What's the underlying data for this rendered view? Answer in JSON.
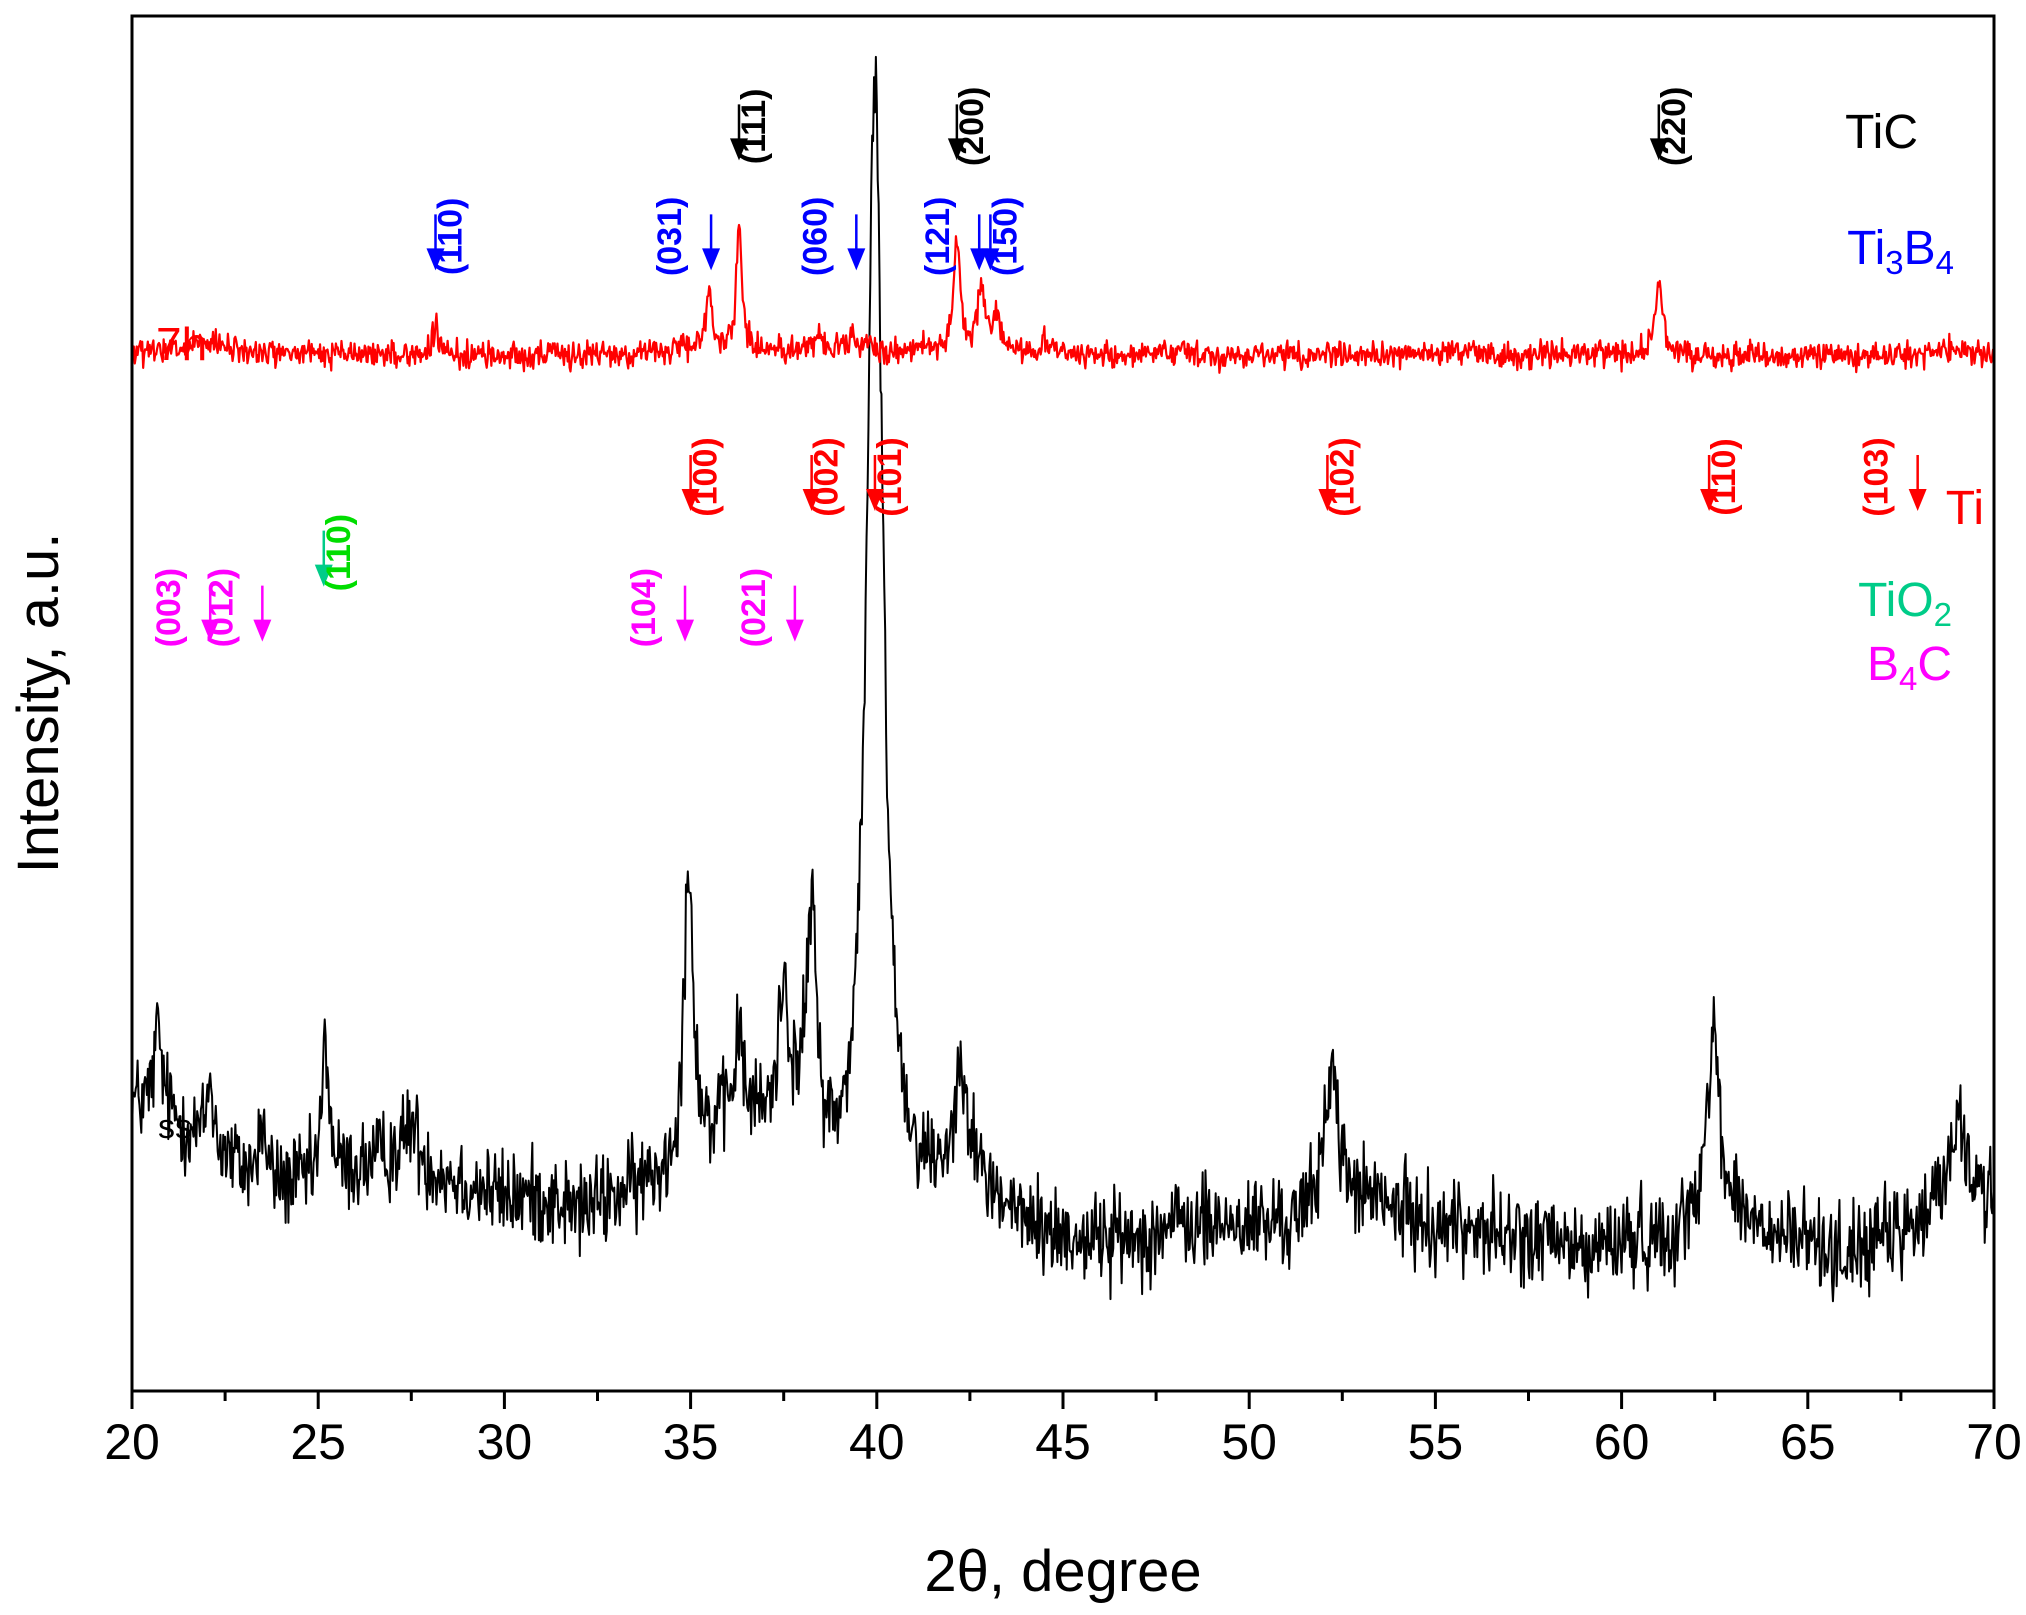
{
  "chart_data": {
    "type": "line",
    "xlabel": "2θ, degree",
    "ylabel": "Intensity, a.u.",
    "xlim": [
      20,
      70
    ],
    "x_ticks": [
      "20",
      "25",
      "30",
      "35",
      "40",
      "45",
      "50",
      "55",
      "60",
      "65",
      "70"
    ],
    "y_ticks_shown": false,
    "grid": false,
    "series": [
      {
        "name": "ss",
        "color": "#000000",
        "baseline": 0.15,
        "noise": 0.024,
        "points": [
          [
            20,
            0.21
          ],
          [
            21,
            0.2
          ],
          [
            22,
            0.18
          ],
          [
            23,
            0.16
          ],
          [
            24,
            0.15
          ],
          [
            25,
            0.15
          ],
          [
            26,
            0.16
          ],
          [
            27,
            0.17
          ],
          [
            28,
            0.16
          ],
          [
            29,
            0.15
          ],
          [
            30,
            0.14
          ],
          [
            31,
            0.14
          ],
          [
            32,
            0.13
          ],
          [
            33,
            0.14
          ],
          [
            34,
            0.15
          ],
          [
            35,
            0.16
          ],
          [
            36,
            0.19
          ],
          [
            37,
            0.19
          ],
          [
            38,
            0.19
          ],
          [
            39,
            0.14
          ],
          [
            40,
            0.15
          ],
          [
            41,
            0.14
          ],
          [
            42,
            0.15
          ],
          [
            43,
            0.14
          ],
          [
            44,
            0.12
          ],
          [
            45,
            0.11
          ],
          [
            46,
            0.11
          ],
          [
            47,
            0.11
          ],
          [
            48,
            0.12
          ],
          [
            49,
            0.12
          ],
          [
            50,
            0.12
          ],
          [
            51,
            0.12
          ],
          [
            52,
            0.13
          ],
          [
            53,
            0.14
          ],
          [
            54,
            0.13
          ],
          [
            55,
            0.12
          ],
          [
            56,
            0.12
          ],
          [
            57,
            0.11
          ],
          [
            58,
            0.11
          ],
          [
            59,
            0.1
          ],
          [
            60,
            0.11
          ],
          [
            61,
            0.11
          ],
          [
            62,
            0.12
          ],
          [
            63,
            0.13
          ],
          [
            64,
            0.11
          ],
          [
            65,
            0.11
          ],
          [
            66,
            0.1
          ],
          [
            67,
            0.11
          ],
          [
            68,
            0.12
          ],
          [
            69,
            0.16
          ],
          [
            70,
            0.14
          ]
        ],
        "peaks": [
          {
            "x": 20.7,
            "h": 0.06,
            "w": 0.12
          },
          {
            "x": 22.1,
            "h": 0.05,
            "w": 0.1
          },
          {
            "x": 23.5,
            "h": 0.04,
            "w": 0.1
          },
          {
            "x": 25.2,
            "h": 0.1,
            "w": 0.12
          },
          {
            "x": 27.5,
            "h": 0.03,
            "w": 0.2
          },
          {
            "x": 34.95,
            "h": 0.22,
            "w": 0.16
          },
          {
            "x": 36.3,
            "h": 0.06,
            "w": 0.15
          },
          {
            "x": 37.5,
            "h": 0.1,
            "w": 0.15
          },
          {
            "x": 38.25,
            "h": 0.16,
            "w": 0.15
          },
          {
            "x": 39.95,
            "h": 0.8,
            "w": 0.26
          },
          {
            "x": 42.3,
            "h": 0.09,
            "w": 0.2
          },
          {
            "x": 52.2,
            "h": 0.11,
            "w": 0.2
          },
          {
            "x": 62.45,
            "h": 0.15,
            "w": 0.18
          },
          {
            "x": 69.0,
            "h": 0.05,
            "w": 0.15
          }
        ]
      },
      {
        "name": "7h",
        "color": "#ff0000",
        "baseline": 0.75,
        "noise": 0.007,
        "points": [
          [
            20,
            0.755
          ],
          [
            21,
            0.756
          ],
          [
            22,
            0.762
          ],
          [
            23,
            0.756
          ],
          [
            24,
            0.755
          ],
          [
            25,
            0.754
          ],
          [
            27,
            0.754
          ],
          [
            30,
            0.753
          ],
          [
            33,
            0.754
          ],
          [
            35,
            0.757
          ],
          [
            36,
            0.758
          ],
          [
            37,
            0.757
          ],
          [
            38,
            0.758
          ],
          [
            39,
            0.758
          ],
          [
            40,
            0.757
          ],
          [
            42,
            0.759
          ],
          [
            44,
            0.757
          ],
          [
            46,
            0.753
          ],
          [
            50,
            0.754
          ],
          [
            55,
            0.754
          ],
          [
            56,
            0.756
          ],
          [
            57,
            0.753
          ],
          [
            60,
            0.754
          ],
          [
            62,
            0.753
          ],
          [
            65,
            0.753
          ],
          [
            68,
            0.754
          ],
          [
            69,
            0.758
          ],
          [
            70,
            0.753
          ]
        ],
        "peaks": [
          {
            "x": 28.15,
            "h": 0.019,
            "w": 0.09
          },
          {
            "x": 35.5,
            "h": 0.042,
            "w": 0.1
          },
          {
            "x": 36.3,
            "h": 0.088,
            "w": 0.09
          },
          {
            "x": 38.45,
            "h": 0.013,
            "w": 0.08
          },
          {
            "x": 39.35,
            "h": 0.011,
            "w": 0.08
          },
          {
            "x": 42.15,
            "h": 0.076,
            "w": 0.1
          },
          {
            "x": 42.8,
            "h": 0.045,
            "w": 0.1
          },
          {
            "x": 43.2,
            "h": 0.026,
            "w": 0.1
          },
          {
            "x": 44.5,
            "h": 0.008,
            "w": 0.1
          },
          {
            "x": 61.0,
            "h": 0.051,
            "w": 0.12
          }
        ]
      }
    ],
    "phases": [
      {
        "name": "TiC",
        "sub": "",
        "tail": "",
        "color": "#000000"
      },
      {
        "name": "Ti",
        "sub": "3",
        "tail": "B",
        "tail_sub": "4",
        "color": "#0000ff"
      },
      {
        "name": "Ti",
        "sub": "",
        "tail": "",
        "color": "#ff0000"
      },
      {
        "name": "TiO",
        "sub": "2",
        "tail": "",
        "color": "#00cc88"
      },
      {
        "name": "B",
        "sub": "4",
        "tail": "C",
        "color": "#ff00ff"
      }
    ],
    "annotations": [
      {
        "phase": "TiC",
        "x": 36.3,
        "hkl": "(111)",
        "color": "#000000",
        "level": 0.895,
        "side": "right"
      },
      {
        "phase": "TiC",
        "x": 42.15,
        "hkl": "(200)",
        "color": "#000000",
        "level": 0.895,
        "side": "right"
      },
      {
        "phase": "TiC",
        "x": 61.0,
        "hkl": "(220)",
        "color": "#000000",
        "level": 0.895,
        "side": "right"
      },
      {
        "phase": "Ti3B4",
        "x": 28.15,
        "hkl": "(110)",
        "color": "#0000ff",
        "level": 0.815,
        "side": "right"
      },
      {
        "phase": "Ti3B4",
        "x": 35.55,
        "hkl": "(031)",
        "color": "#0000ff",
        "level": 0.815,
        "side": "left"
      },
      {
        "phase": "Ti3B4",
        "x": 39.45,
        "hkl": "(060)",
        "color": "#0000ff",
        "level": 0.815,
        "side": "left"
      },
      {
        "phase": "Ti3B4",
        "x": 42.75,
        "hkl": "(121)",
        "color": "#0000ff",
        "level": 0.815,
        "side": "left"
      },
      {
        "phase": "Ti3B4",
        "x": 43.05,
        "hkl": "(150)",
        "color": "#0000ff",
        "level": 0.815,
        "side": "right"
      },
      {
        "phase": "Ti",
        "x": 35.0,
        "hkl": "(100)",
        "color": "#ff0000",
        "level": 0.64,
        "side": "right"
      },
      {
        "phase": "Ti",
        "x": 38.25,
        "hkl": "(002)",
        "color": "#ff0000",
        "level": 0.64,
        "side": "right"
      },
      {
        "phase": "Ti",
        "x": 39.95,
        "hkl": "(101)",
        "color": "#ff0000",
        "level": 0.64,
        "side": "right"
      },
      {
        "phase": "Ti",
        "x": 52.1,
        "hkl": "(102)",
        "color": "#ff0000",
        "level": 0.64,
        "side": "right"
      },
      {
        "phase": "Ti",
        "x": 62.35,
        "hkl": "(110)",
        "color": "#ff0000",
        "level": 0.64,
        "side": "right"
      },
      {
        "phase": "Ti",
        "x": 67.95,
        "hkl": "(103)",
        "color": "#ff0000",
        "level": 0.64,
        "side": "left"
      },
      {
        "phase": "TiO2",
        "x": 25.15,
        "hkl": "(110)",
        "color": "#00cc88",
        "label_color": "#00dd00",
        "level": 0.585,
        "side": "right"
      },
      {
        "phase": "B4C",
        "x": 22.1,
        "hkl": "(003)",
        "color": "#ff00ff",
        "level": 0.545,
        "side": "left"
      },
      {
        "phase": "B4C",
        "x": 23.5,
        "hkl": "(012)",
        "color": "#ff00ff",
        "level": 0.545,
        "side": "left"
      },
      {
        "phase": "B4C",
        "x": 34.85,
        "hkl": "(104)",
        "color": "#ff00ff",
        "level": 0.545,
        "side": "left"
      },
      {
        "phase": "B4C",
        "x": 37.8,
        "hkl": "(021)",
        "color": "#ff00ff",
        "level": 0.545,
        "side": "left"
      }
    ]
  }
}
